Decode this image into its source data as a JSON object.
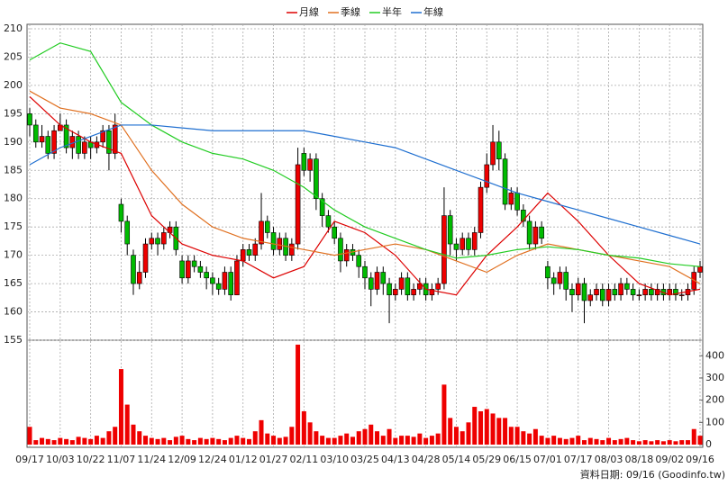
{
  "chart_data": {
    "type": "candlestick",
    "ylim": [
      155,
      210
    ],
    "yticks": [
      155,
      160,
      165,
      170,
      175,
      180,
      185,
      190,
      195,
      200,
      205,
      210
    ],
    "xticks": [
      {
        "value": 0,
        "label": "09/17"
      },
      {
        "value": 5,
        "label": "10/03"
      },
      {
        "value": 10,
        "label": "10/22"
      },
      {
        "value": 15,
        "label": "11/07"
      },
      {
        "value": 20,
        "label": "11/24"
      },
      {
        "value": 25,
        "label": "12/09"
      },
      {
        "value": 30,
        "label": "12/24"
      },
      {
        "value": 35,
        "label": "01/12"
      },
      {
        "value": 40,
        "label": "01/27"
      },
      {
        "value": 45,
        "label": "02/11"
      },
      {
        "value": 50,
        "label": "03/10"
      },
      {
        "value": 55,
        "label": "03/25"
      },
      {
        "value": 60,
        "label": "04/13"
      },
      {
        "value": 65,
        "label": "04/28"
      },
      {
        "value": 70,
        "label": "05/14"
      },
      {
        "value": 75,
        "label": "05/29"
      },
      {
        "value": 80,
        "label": "06/15"
      },
      {
        "value": 85,
        "label": "07/01"
      },
      {
        "value": 90,
        "label": "07/17"
      },
      {
        "value": 95,
        "label": "08/03"
      },
      {
        "value": 100,
        "label": "08/18"
      },
      {
        "value": 105,
        "label": "09/02"
      },
      {
        "value": 110,
        "label": "09/16"
      }
    ],
    "grid": true,
    "candles": {
      "up_color": "#ee0000",
      "down_color": "#00bb00",
      "ohlc": [
        [
          195,
          196,
          191,
          193
        ],
        [
          193,
          194,
          189,
          190
        ],
        [
          190,
          193,
          189,
          191
        ],
        [
          191,
          192,
          187,
          188
        ],
        [
          188,
          193,
          187,
          192
        ],
        [
          192,
          195,
          192,
          193
        ],
        [
          193,
          194,
          188,
          189
        ],
        [
          189,
          192,
          187,
          191
        ],
        [
          191,
          192,
          187,
          188
        ],
        [
          188,
          191,
          187,
          190
        ],
        [
          190,
          191,
          187,
          189
        ],
        [
          189,
          191,
          188,
          190
        ],
        [
          190,
          193,
          189,
          192
        ],
        [
          192,
          193,
          185,
          188
        ],
        [
          188,
          195,
          187,
          193
        ],
        [
          179,
          180,
          174,
          176
        ],
        [
          176,
          177,
          170,
          172
        ],
        [
          170,
          171,
          163,
          165
        ],
        [
          165,
          169,
          164,
          167
        ],
        [
          167,
          173,
          166,
          172
        ],
        [
          172,
          174,
          171,
          173
        ],
        [
          173,
          174,
          170,
          172
        ],
        [
          172,
          175,
          171,
          174
        ],
        [
          174,
          176,
          173,
          175
        ],
        [
          175,
          176,
          170,
          171
        ],
        [
          169,
          170,
          165,
          166
        ],
        [
          166,
          170,
          165,
          169
        ],
        [
          169,
          170,
          167,
          168
        ],
        [
          168,
          169,
          166,
          167
        ],
        [
          167,
          168,
          164,
          166
        ],
        [
          166,
          167,
          163,
          165
        ],
        [
          165,
          166,
          163,
          164
        ],
        [
          164,
          168,
          163,
          167
        ],
        [
          167,
          168,
          162,
          163
        ],
        [
          163,
          170,
          163,
          169
        ],
        [
          169,
          172,
          168,
          171
        ],
        [
          171,
          172,
          169,
          170
        ],
        [
          170,
          173,
          169,
          172
        ],
        [
          172,
          181,
          171,
          176
        ],
        [
          176,
          177,
          173,
          174
        ],
        [
          174,
          175,
          170,
          171
        ],
        [
          171,
          174,
          170,
          173
        ],
        [
          173,
          174,
          169,
          170
        ],
        [
          170,
          173,
          169,
          172
        ],
        [
          172,
          189,
          171,
          186
        ],
        [
          188,
          189,
          184,
          185
        ],
        [
          185,
          188,
          183,
          187
        ],
        [
          187,
          188,
          178,
          180
        ],
        [
          180,
          181,
          175,
          177
        ],
        [
          177,
          178,
          174,
          175
        ],
        [
          175,
          176,
          172,
          173
        ],
        [
          173,
          174,
          167,
          169
        ],
        [
          169,
          172,
          168,
          171
        ],
        [
          171,
          172,
          169,
          170
        ],
        [
          170,
          171,
          166,
          168
        ],
        [
          168,
          169,
          164,
          166
        ],
        [
          166,
          167,
          161,
          164
        ],
        [
          164,
          168,
          163,
          167
        ],
        [
          167,
          168,
          163,
          165
        ],
        [
          165,
          166,
          158,
          163
        ],
        [
          163,
          165,
          162,
          164
        ],
        [
          164,
          167,
          163,
          166
        ],
        [
          166,
          167,
          162,
          163
        ],
        [
          163,
          165,
          162,
          164
        ],
        [
          164,
          166,
          163,
          165
        ],
        [
          165,
          166,
          162,
          163
        ],
        [
          163,
          165,
          162,
          164
        ],
        [
          164,
          166,
          163,
          165
        ],
        [
          165,
          182,
          164,
          177
        ],
        [
          177,
          178,
          170,
          172
        ],
        [
          172,
          173,
          169,
          171
        ],
        [
          171,
          174,
          170,
          173
        ],
        [
          173,
          174,
          170,
          171
        ],
        [
          171,
          175,
          170,
          174
        ],
        [
          174,
          183,
          173,
          182
        ],
        [
          182,
          188,
          181,
          186
        ],
        [
          186,
          193,
          185,
          190
        ],
        [
          190,
          192,
          185,
          187
        ],
        [
          187,
          188,
          178,
          179
        ],
        [
          179,
          182,
          178,
          181
        ],
        [
          181,
          182,
          177,
          178
        ],
        [
          178,
          179,
          175,
          176
        ],
        [
          176,
          177,
          171,
          172
        ],
        [
          172,
          176,
          171,
          175
        ],
        [
          175,
          176,
          172,
          173
        ],
        [
          168,
          169,
          164,
          166
        ],
        [
          166,
          167,
          163,
          165
        ],
        [
          165,
          168,
          164,
          167
        ],
        [
          167,
          168,
          162,
          164
        ],
        [
          164,
          165,
          160,
          163
        ],
        [
          163,
          166,
          162,
          165
        ],
        [
          165,
          166,
          158,
          162
        ],
        [
          162,
          164,
          161,
          163
        ],
        [
          163,
          165,
          162,
          164
        ],
        [
          164,
          165,
          161,
          162
        ],
        [
          162,
          165,
          161,
          164
        ],
        [
          164,
          165,
          162,
          163
        ],
        [
          163,
          166,
          162,
          165
        ],
        [
          165,
          166,
          163,
          164
        ],
        [
          164,
          165,
          162,
          163
        ],
        [
          163,
          164,
          162,
          163
        ],
        [
          163,
          165,
          162,
          164
        ],
        [
          164,
          165,
          162,
          163
        ],
        [
          163,
          165,
          162,
          164
        ],
        [
          164,
          165,
          162,
          163
        ],
        [
          163,
          165,
          162,
          164
        ],
        [
          164,
          165,
          162,
          163
        ],
        [
          163,
          164,
          162,
          163
        ],
        [
          163,
          165,
          162,
          164
        ],
        [
          164,
          168,
          163,
          167
        ],
        [
          167,
          169,
          166,
          168
        ]
      ]
    },
    "series": [
      {
        "name": "月線",
        "color": "#dd0000",
        "values": [
          198,
          193,
          190,
          188,
          177,
          172,
          170,
          169,
          166,
          168,
          176,
          174,
          170,
          164,
          163,
          170,
          175,
          181,
          176,
          170,
          165,
          163,
          164
        ]
      },
      {
        "name": "季線",
        "color": "#e07020",
        "values": [
          199,
          196,
          195,
          193,
          185,
          179,
          175,
          173,
          172,
          171,
          170,
          171,
          172,
          171,
          169,
          167,
          170,
          172,
          171,
          170,
          169,
          168,
          165
        ]
      },
      {
        "name": "半年",
        "color": "#22cc22",
        "values": [
          204.5,
          207.5,
          206,
          197,
          193,
          190,
          188,
          187,
          185,
          182,
          178,
          175,
          173,
          171,
          169.5,
          170,
          171,
          171.5,
          171,
          170,
          169.5,
          168.5,
          168
        ]
      },
      {
        "name": "年線",
        "color": "#1f6fd0",
        "values": [
          186,
          189,
          191,
          193,
          193,
          192.5,
          192,
          192,
          192,
          192,
          191,
          190,
          189,
          187,
          185,
          183,
          181,
          179.5,
          178,
          176.5,
          175,
          173.5,
          172
        ]
      }
    ],
    "volume": {
      "color": "#ee0000",
      "ylim": [
        0,
        470
      ],
      "yticks": [
        0,
        100,
        200,
        300,
        400
      ],
      "values": [
        80,
        20,
        30,
        25,
        20,
        30,
        25,
        20,
        35,
        30,
        25,
        40,
        30,
        60,
        80,
        340,
        180,
        90,
        60,
        40,
        30,
        25,
        30,
        20,
        35,
        40,
        25,
        20,
        30,
        25,
        30,
        25,
        20,
        30,
        40,
        30,
        25,
        60,
        110,
        50,
        40,
        30,
        35,
        80,
        450,
        150,
        100,
        60,
        40,
        30,
        30,
        40,
        50,
        35,
        60,
        70,
        90,
        60,
        40,
        70,
        30,
        40,
        40,
        35,
        50,
        30,
        40,
        50,
        270,
        120,
        80,
        60,
        100,
        170,
        150,
        160,
        140,
        120,
        120,
        80,
        80,
        60,
        50,
        70,
        40,
        30,
        40,
        30,
        25,
        30,
        40,
        20,
        30,
        25,
        20,
        30,
        20,
        25,
        30,
        20,
        15,
        20,
        15,
        20,
        15,
        20,
        15,
        20,
        20,
        70,
        40
      ]
    },
    "source": "資料日期: 09/16  (Goodinfo.tw)"
  }
}
